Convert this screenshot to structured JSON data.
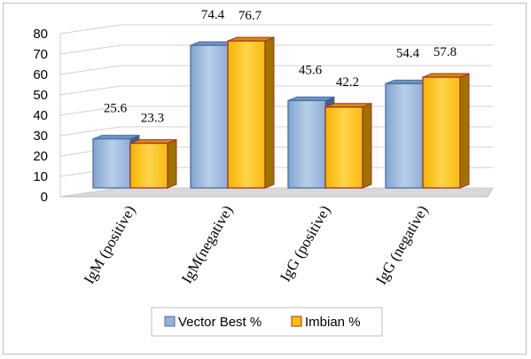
{
  "chart_data": {
    "type": "bar",
    "categories": [
      "IgM (positive)",
      "IgM(negative)",
      "IgG (positive)",
      "IgG (negative)"
    ],
    "series": [
      {
        "name": "Vector Best %",
        "values": [
          25.6,
          74.4,
          45.6,
          54.4
        ],
        "color": "#95b3d7",
        "edge": "#4a6fa5"
      },
      {
        "name": "Imbian %",
        "values": [
          23.3,
          76.7,
          42.2,
          57.8
        ],
        "color": "#ffc000",
        "edge": "#a0322a"
      }
    ],
    "ylim": [
      0,
      80
    ],
    "yticks": [
      "0",
      "10",
      "20",
      "30",
      "40",
      "50",
      "60",
      "70",
      "80"
    ],
    "grid": true,
    "legend_position": "bottom",
    "style": "3d-clustered-column"
  }
}
